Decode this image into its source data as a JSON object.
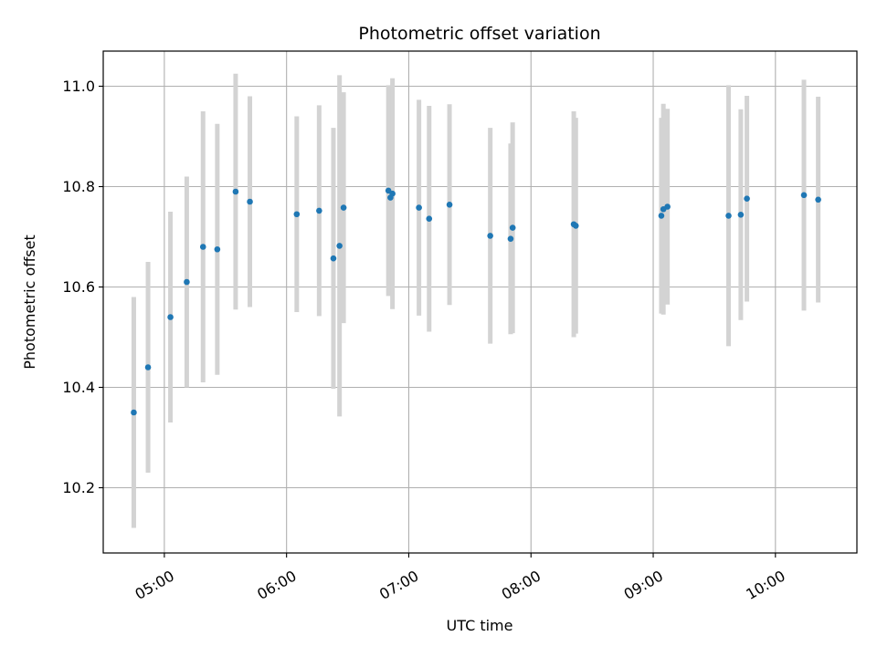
{
  "chart_data": {
    "type": "scatter",
    "title": "Photometric offset variation",
    "xlabel": "UTC time",
    "ylabel": "Photometric offset",
    "xlim": [
      "04:30",
      "10:40"
    ],
    "ylim": [
      10.07,
      11.07
    ],
    "x_ticks": [
      "05:00",
      "06:00",
      "07:00",
      "08:00",
      "09:00",
      "10:00"
    ],
    "y_ticks": [
      10.2,
      10.4,
      10.6,
      10.8,
      11.0
    ],
    "y_tick_labels": [
      "10.2",
      "10.4",
      "10.6",
      "10.8",
      "11.0"
    ],
    "grid": true,
    "colors": {
      "points": "#1f77b4",
      "errorbars": "#d3d3d3",
      "grid": "#b0b0b0"
    },
    "points": [
      {
        "t": "04:45",
        "y": 10.35,
        "err": 0.23
      },
      {
        "t": "04:52",
        "y": 10.44,
        "err": 0.21
      },
      {
        "t": "05:03",
        "y": 10.54,
        "err": 0.21
      },
      {
        "t": "05:11",
        "y": 10.61,
        "err": 0.21
      },
      {
        "t": "05:19",
        "y": 10.68,
        "err": 0.27
      },
      {
        "t": "05:26",
        "y": 10.675,
        "err": 0.25
      },
      {
        "t": "05:35",
        "y": 10.79,
        "err": 0.235
      },
      {
        "t": "05:42",
        "y": 10.77,
        "err": 0.21
      },
      {
        "t": "06:05",
        "y": 10.745,
        "err": 0.195
      },
      {
        "t": "06:16",
        "y": 10.752,
        "err": 0.21
      },
      {
        "t": "06:23",
        "y": 10.657,
        "err": 0.26
      },
      {
        "t": "06:26",
        "y": 10.682,
        "err": 0.34
      },
      {
        "t": "06:28",
        "y": 10.758,
        "err": 0.23
      },
      {
        "t": "06:50",
        "y": 10.792,
        "err": 0.21
      },
      {
        "t": "06:51",
        "y": 10.778,
        "err": 0.195
      },
      {
        "t": "06:52",
        "y": 10.786,
        "err": 0.23
      },
      {
        "t": "07:05",
        "y": 10.758,
        "err": 0.215
      },
      {
        "t": "07:10",
        "y": 10.736,
        "err": 0.225
      },
      {
        "t": "07:20",
        "y": 10.764,
        "err": 0.2
      },
      {
        "t": "07:40",
        "y": 10.702,
        "err": 0.215
      },
      {
        "t": "07:50",
        "y": 10.696,
        "err": 0.19
      },
      {
        "t": "07:51",
        "y": 10.718,
        "err": 0.21
      },
      {
        "t": "08:21",
        "y": 10.725,
        "err": 0.225
      },
      {
        "t": "08:22",
        "y": 10.722,
        "err": 0.215
      },
      {
        "t": "09:04",
        "y": 10.742,
        "err": 0.195
      },
      {
        "t": "09:05",
        "y": 10.755,
        "err": 0.21
      },
      {
        "t": "09:07",
        "y": 10.76,
        "err": 0.195
      },
      {
        "t": "09:37",
        "y": 10.742,
        "err": 0.26
      },
      {
        "t": "09:43",
        "y": 10.744,
        "err": 0.21
      },
      {
        "t": "09:46",
        "y": 10.776,
        "err": 0.205
      },
      {
        "t": "10:14",
        "y": 10.783,
        "err": 0.23
      },
      {
        "t": "10:21",
        "y": 10.774,
        "err": 0.205
      }
    ]
  }
}
